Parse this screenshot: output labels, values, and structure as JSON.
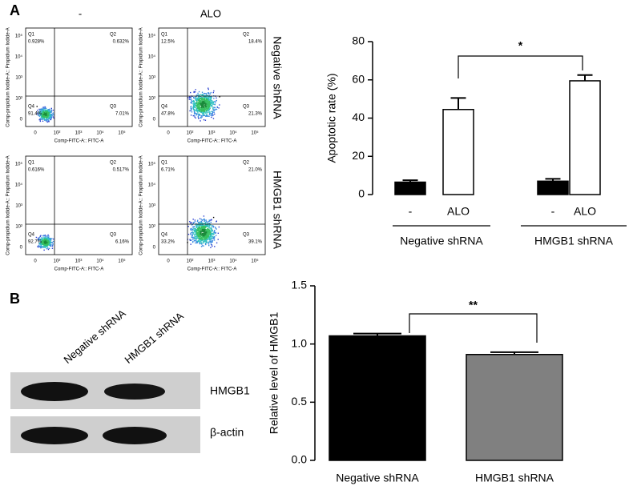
{
  "panel_labels": [
    "A",
    "B"
  ],
  "flow": {
    "column_headers": [
      "-",
      "ALO"
    ],
    "row_labels": [
      "Negative shRNA",
      "HMGB1 shRNA"
    ],
    "x_label": "Comp-FITC-A:: FITC-A",
    "y_label": "Comp-propidium Iodide-A:: Propidium Iodide-A",
    "x_ticks": [
      "0",
      "10²",
      "10³",
      "10⁴",
      "10⁵"
    ],
    "y_ticks": [
      "10⁵",
      "10⁴",
      "10³",
      "10²",
      "0"
    ],
    "quadrant_names": [
      "Q1",
      "Q2",
      "Q3",
      "Q4"
    ],
    "plots": [
      {
        "percentages": [
          "0.928%",
          "0.632%",
          "7.01%",
          "91.4%"
        ]
      },
      {
        "percentages": [
          "12.5%",
          "18.4%",
          "21.3%",
          "47.8%"
        ]
      },
      {
        "percentages": [
          "0.616%",
          "0.517%",
          "6.16%",
          "92.7%"
        ]
      },
      {
        "percentages": [
          "6.71%",
          "21.0%",
          "39.1%",
          "33.2%"
        ]
      }
    ]
  },
  "chart_data": [
    {
      "type": "bar",
      "y_label": "Apoptotic rate (%)",
      "categories": [
        "-",
        "ALO",
        "-",
        "ALO"
      ],
      "group_labels": [
        "Negative shRNA",
        "HMGB1 shRNA"
      ],
      "values": [
        6.5,
        44.5,
        7,
        59.5
      ],
      "errors": [
        1,
        6,
        1.2,
        3
      ],
      "colors": [
        "#000000",
        "#ffffff",
        "#000000",
        "#ffffff"
      ],
      "ylim": [
        0,
        80
      ],
      "yticks": [
        0,
        20,
        40,
        60,
        80
      ],
      "annotation": "*"
    },
    {
      "type": "bar",
      "y_label": "Relative level of HMGB1",
      "categories": [
        "Negative shRNA",
        "HMGB1 shRNA"
      ],
      "values": [
        1.07,
        0.91
      ],
      "errors": [
        0.02,
        0.02
      ],
      "colors": [
        "#000000",
        "#808080"
      ],
      "ylim": [
        0,
        1.5
      ],
      "yticks": [
        {
          "value": 0,
          "label": "0.0"
        },
        {
          "value": 0.5,
          "label": "0.5"
        },
        {
          "value": 1,
          "label": "1.0"
        },
        {
          "value": 1.5,
          "label": "1.5"
        }
      ],
      "annotation": "**"
    }
  ],
  "blot": {
    "lane_labels": [
      "Negative shRNA",
      "HMGB1 shRNA"
    ],
    "band_labels": [
      "HMGB1",
      "β-actin"
    ]
  }
}
